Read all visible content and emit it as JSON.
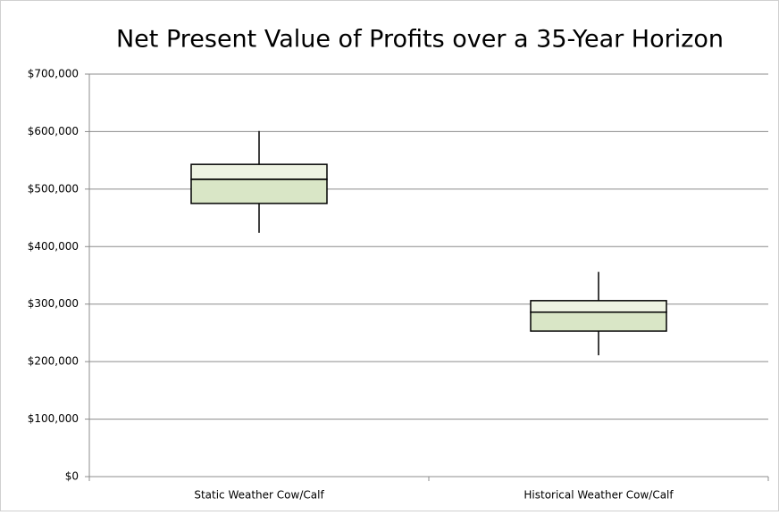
{
  "chart_data": {
    "type": "box",
    "title": "Net Present Value of Profits over a 35-Year Horizon",
    "categories": [
      "Static Weather Cow/Calf",
      "Historical Weather Cow/Calf"
    ],
    "min": [
      424000,
      211000
    ],
    "q1": [
      475000,
      253000
    ],
    "median": [
      517000,
      286000
    ],
    "q3": [
      543000,
      306000
    ],
    "max": [
      601000,
      356000
    ],
    "colors": {
      "upper": "#eef3e2",
      "lower": "#d9e6c6"
    },
    "ylim": [
      0,
      700000
    ],
    "yticks": [
      {
        "value": 0,
        "label": "$0"
      },
      {
        "value": 100000,
        "label": "$100,000"
      },
      {
        "value": 200000,
        "label": "$200,000"
      },
      {
        "value": 300000,
        "label": "$300,000"
      },
      {
        "value": 400000,
        "label": "$400,000"
      },
      {
        "value": 500000,
        "label": "$500,000"
      },
      {
        "value": 600000,
        "label": "$600,000"
      },
      {
        "value": 700000,
        "label": "$700,000"
      }
    ],
    "grid": true
  }
}
